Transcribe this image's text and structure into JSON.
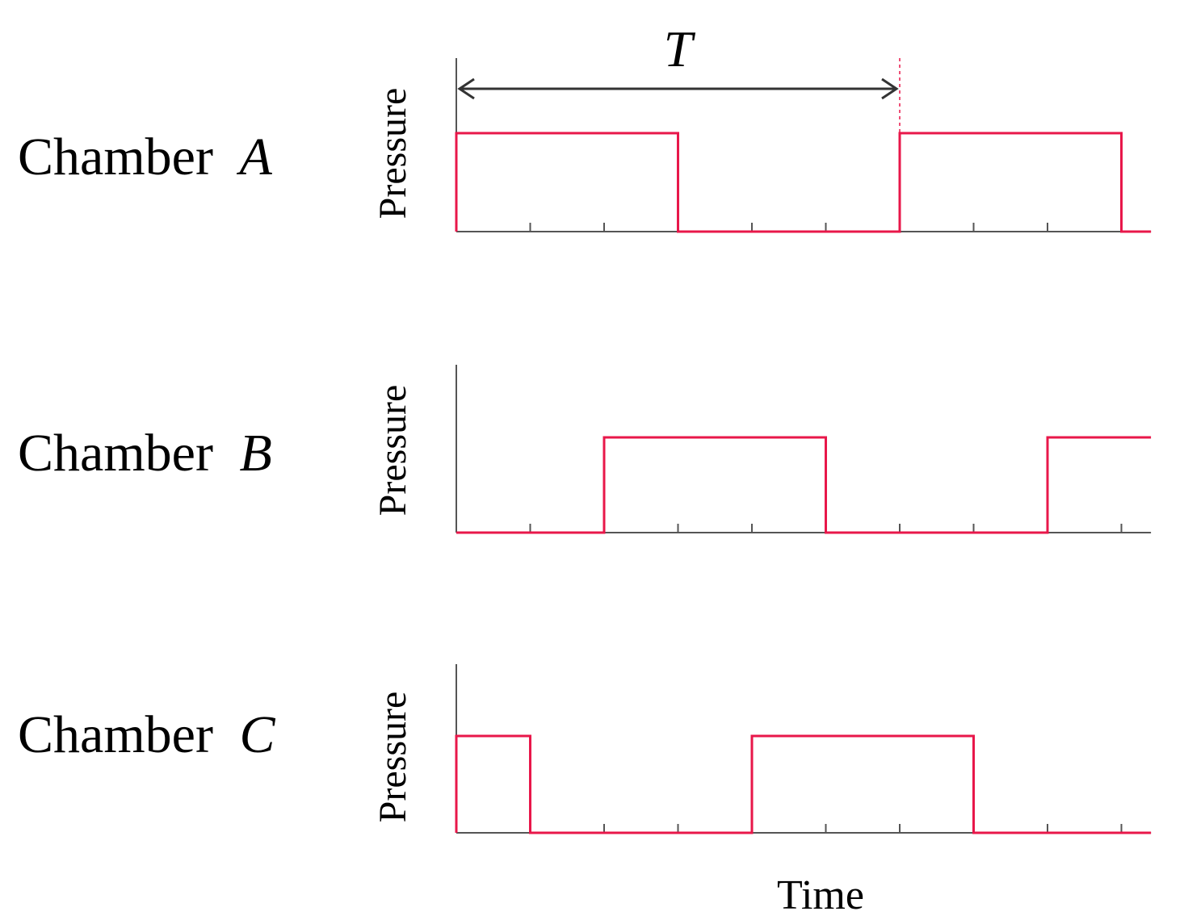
{
  "colors": {
    "signal": "#e8174a",
    "axis": "#555555",
    "text": "#000000"
  },
  "chart_data": {
    "type": "line",
    "xlabel": "Time",
    "period_label": "T",
    "x_range": [
      0,
      9.4
    ],
    "tick_x": [
      0,
      1,
      2,
      3,
      4,
      5,
      6,
      7,
      8,
      9
    ],
    "period": {
      "start": 0,
      "end": 6
    },
    "panels": [
      {
        "label": "Chamber",
        "label_var": "A",
        "ylabel": "Pressure",
        "high": [
          [
            0,
            3
          ],
          [
            6,
            9
          ]
        ]
      },
      {
        "label": "Chamber",
        "label_var": "B",
        "ylabel": "Pressure",
        "high": [
          [
            2,
            5
          ],
          [
            8,
            9.4
          ]
        ]
      },
      {
        "label": "Chamber",
        "label_var": "C",
        "ylabel": "Pressure",
        "high": [
          [
            0,
            1
          ],
          [
            4,
            7
          ]
        ]
      }
    ]
  }
}
